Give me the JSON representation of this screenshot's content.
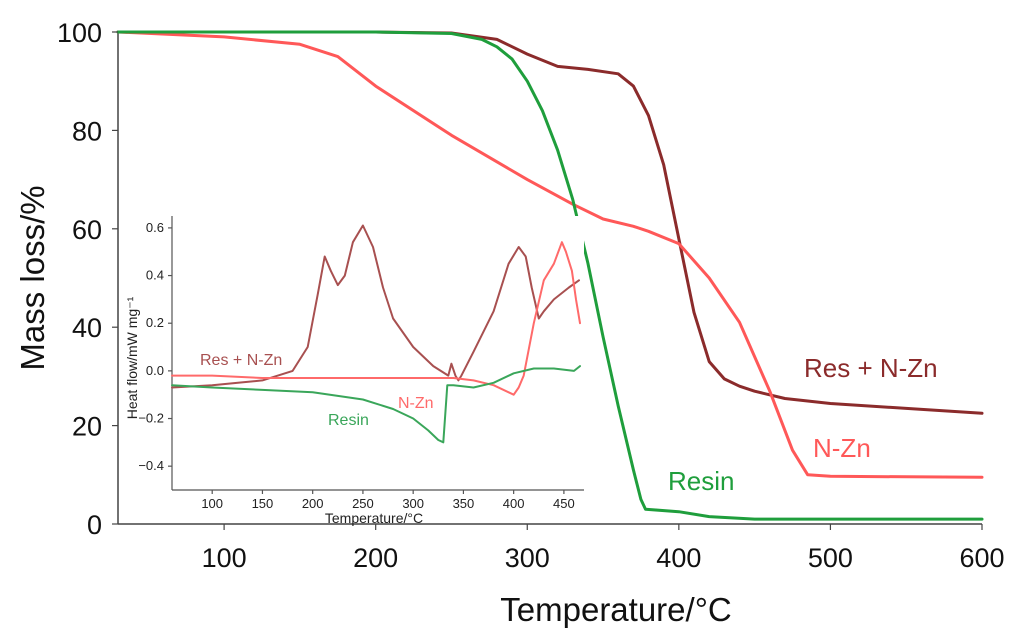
{
  "chart_data": [
    {
      "type": "line",
      "xlabel": "Temperature/°C",
      "ylabel": "Mass loss/%",
      "xlim": [
        30,
        600
      ],
      "ylim": [
        0,
        100
      ],
      "xticks": [
        100,
        200,
        300,
        400,
        500,
        600
      ],
      "yticks": [
        0,
        20,
        40,
        60,
        80,
        100
      ],
      "grid": false,
      "series": [
        {
          "name": "Res + N-Zn",
          "color": "#8b2b2b",
          "x": [
            30,
            100,
            150,
            200,
            250,
            280,
            300,
            320,
            340,
            360,
            370,
            380,
            390,
            400,
            410,
            420,
            430,
            440,
            450,
            470,
            500,
            550,
            600
          ],
          "y": [
            100,
            100,
            100,
            100,
            99.8,
            98.5,
            95.5,
            93,
            92.4,
            91.5,
            89,
            83,
            73,
            58,
            43,
            33,
            29.5,
            28,
            27,
            25.5,
            24.5,
            23.5,
            22.5
          ]
        },
        {
          "name": "N-Zn",
          "color": "#ff5858",
          "x": [
            30,
            100,
            150,
            175,
            200,
            250,
            300,
            330,
            350,
            370,
            380,
            400,
            420,
            440,
            460,
            475,
            485,
            500,
            550,
            600
          ],
          "y": [
            100,
            99,
            97.5,
            95,
            89,
            79,
            70,
            65,
            62,
            60.5,
            59.5,
            57,
            50,
            41,
            27,
            15,
            10,
            9.7,
            9.6,
            9.5
          ]
        },
        {
          "name": "Resin",
          "color": "#1f9e3c",
          "x": [
            30,
            100,
            200,
            250,
            270,
            280,
            290,
            300,
            310,
            320,
            330,
            340,
            350,
            360,
            370,
            375,
            378,
            400,
            420,
            450,
            500,
            600
          ],
          "y": [
            100,
            100,
            100,
            99.7,
            98.5,
            97,
            94.5,
            90,
            84,
            76,
            66,
            53,
            38,
            24,
            11,
            5,
            3,
            2.5,
            1.5,
            1,
            1,
            1
          ]
        }
      ]
    },
    {
      "type": "line",
      "xlabel": "Temperature/°C",
      "ylabel": "Heat flow/mW mg⁻¹",
      "xlim": [
        60,
        470
      ],
      "ylim": [
        -0.5,
        0.65
      ],
      "xticks": [
        100,
        150,
        200,
        250,
        300,
        350,
        400,
        450
      ],
      "yticks": [
        -0.4,
        -0.2,
        0.0,
        0.2,
        0.4,
        0.6
      ],
      "ytick_labels": [
        "−0.4",
        "−0.2",
        "0.0",
        "0.2",
        "0.4",
        "0.6"
      ],
      "grid": false,
      "series": [
        {
          "name": "Res + N-Zn",
          "color": "#a85050",
          "x": [
            60,
            100,
            150,
            180,
            195,
            205,
            212,
            218,
            225,
            232,
            240,
            250,
            260,
            270,
            280,
            300,
            320,
            335,
            338,
            342,
            345,
            348,
            360,
            380,
            395,
            405,
            412,
            418,
            425,
            430,
            440,
            455,
            465
          ],
          "y": [
            -0.07,
            -0.06,
            -0.04,
            0.0,
            0.1,
            0.32,
            0.48,
            0.42,
            0.36,
            0.4,
            0.54,
            0.61,
            0.52,
            0.35,
            0.22,
            0.1,
            0.02,
            -0.02,
            0.03,
            -0.02,
            -0.04,
            -0.02,
            0.08,
            0.25,
            0.45,
            0.52,
            0.48,
            0.35,
            0.22,
            0.25,
            0.3,
            0.35,
            0.38
          ]
        },
        {
          "name": "N-Zn",
          "color": "#ff6a6a",
          "x": [
            60,
            100,
            150,
            200,
            250,
            300,
            340,
            360,
            380,
            400,
            405,
            410,
            420,
            430,
            440,
            448,
            452,
            458,
            462,
            466
          ],
          "y": [
            -0.02,
            -0.02,
            -0.03,
            -0.03,
            -0.03,
            -0.03,
            -0.03,
            -0.04,
            -0.06,
            -0.1,
            -0.07,
            -0.02,
            0.2,
            0.38,
            0.45,
            0.54,
            0.5,
            0.42,
            0.3,
            0.2
          ]
        },
        {
          "name": "Resin",
          "color": "#3aa65a",
          "x": [
            60,
            100,
            150,
            200,
            250,
            280,
            300,
            315,
            325,
            330,
            332,
            334,
            340,
            360,
            380,
            400,
            420,
            440,
            460,
            466
          ],
          "y": [
            -0.06,
            -0.07,
            -0.08,
            -0.09,
            -0.12,
            -0.16,
            -0.2,
            -0.25,
            -0.29,
            -0.3,
            -0.18,
            -0.06,
            -0.06,
            -0.07,
            -0.05,
            -0.01,
            0.01,
            0.01,
            0.0,
            0.02
          ]
        }
      ]
    }
  ]
}
